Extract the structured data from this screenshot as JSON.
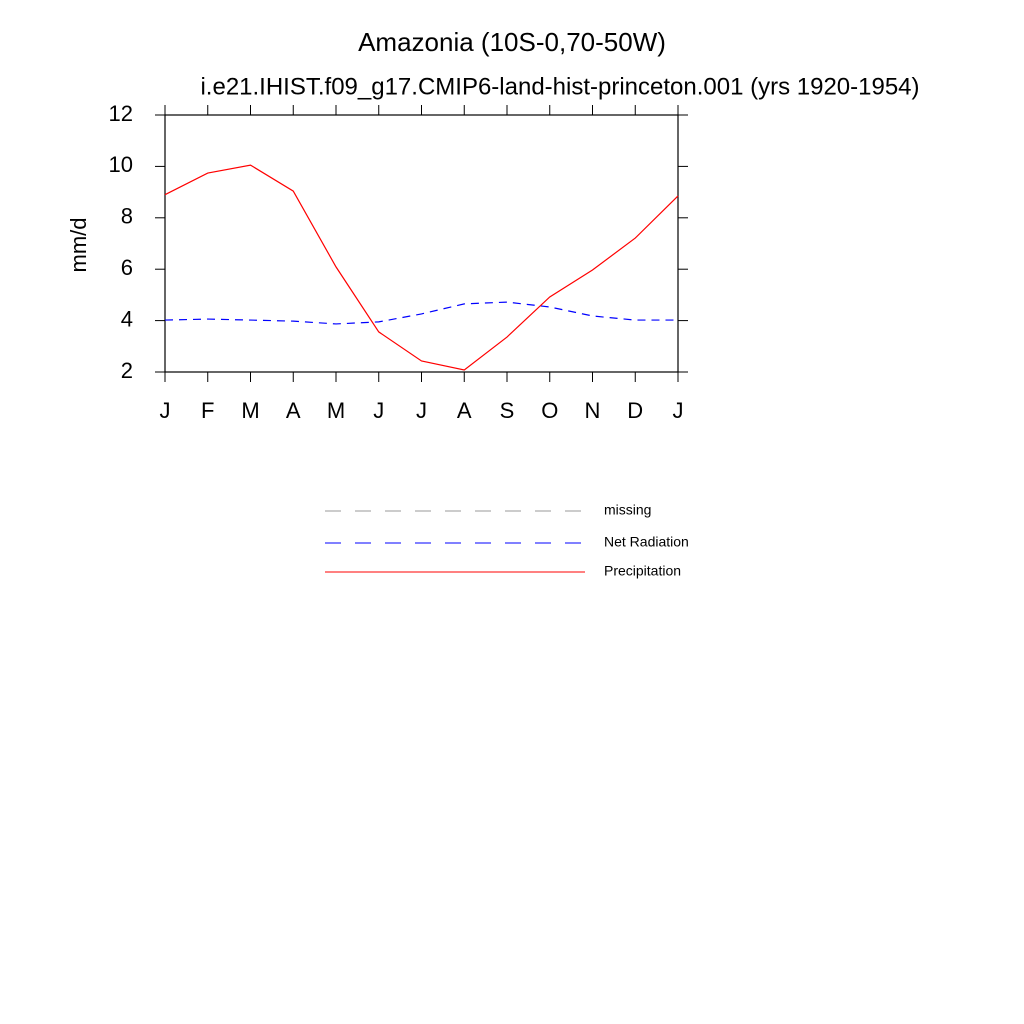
{
  "chart_data": {
    "type": "line",
    "title": "Amazonia (10S-0,70-50W)",
    "subtitle": "i.e21.IHIST.f09_g17.CMIP6-land-hist-princeton.001 (yrs 1920-1954)",
    "y_label": "mm/d",
    "categories": [
      "J",
      "F",
      "M",
      "A",
      "M",
      "J",
      "J",
      "A",
      "S",
      "O",
      "N",
      "D",
      "J"
    ],
    "series": [
      {
        "name": "missing",
        "color": "#999999",
        "line_style": "dashed",
        "values": [
          null,
          null,
          null,
          null,
          null,
          null,
          null,
          null,
          null,
          null,
          null,
          null,
          null
        ]
      },
      {
        "name": "Net Radiation",
        "color": "#0000ff",
        "line_style": "dashed",
        "values": [
          4.02,
          4.06,
          4.02,
          3.98,
          3.87,
          3.95,
          4.26,
          4.65,
          4.72,
          4.53,
          4.18,
          4.02,
          4.02
        ]
      },
      {
        "name": "Precipitation",
        "color": "#ff0000",
        "line_style": "solid",
        "values": [
          8.9,
          9.74,
          10.05,
          9.04,
          6.09,
          3.56,
          2.43,
          2.08,
          3.36,
          4.92,
          5.97,
          7.21,
          8.85
        ]
      }
    ],
    "ylim": [
      2,
      12
    ],
    "yticks": [
      2,
      4,
      6,
      8,
      10,
      12
    ],
    "grid": false
  }
}
